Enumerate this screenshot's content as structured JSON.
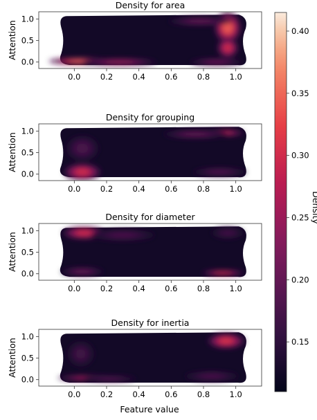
{
  "chart_data": {
    "type": "heatmap",
    "kind": "kde-density",
    "shared_xlabel": "Feature value",
    "colormap": "rocket",
    "colorbar": {
      "label": "Density",
      "min": 0.11,
      "max": 0.415,
      "ticks": [
        0.15,
        0.2,
        0.25,
        0.3,
        0.35,
        0.4
      ],
      "tick_labels": [
        "0.15",
        "0.20",
        "0.25",
        "0.30",
        "0.35",
        "0.40"
      ]
    },
    "xlim": [
      -0.22,
      1.16
    ],
    "ylim": [
      -0.15,
      1.17
    ],
    "xticks": [
      0.0,
      0.2,
      0.4,
      0.6,
      0.8,
      1.0
    ],
    "xtick_labels": [
      "0.0",
      "0.2",
      "0.4",
      "0.6",
      "0.8",
      "1.0"
    ],
    "yticks": [
      0.0,
      0.5,
      1.0
    ],
    "ytick_labels": [
      "0.0",
      "0.5",
      "1.0"
    ],
    "ylabel": "Attention",
    "panels": [
      {
        "title": "Density for area",
        "hotspots": [
          {
            "x": 0.04,
            "y": 0.02,
            "peak": 0.4,
            "sx": 0.12,
            "sy": 0.05
          },
          {
            "x": 0.28,
            "y": 0.0,
            "peak": 0.28,
            "sx": 0.14,
            "sy": 0.05
          },
          {
            "x": 0.95,
            "y": 0.8,
            "peak": 0.39,
            "sx": 0.05,
            "sy": 0.22
          },
          {
            "x": 0.95,
            "y": 0.33,
            "peak": 0.34,
            "sx": 0.04,
            "sy": 0.14
          },
          {
            "x": 0.78,
            "y": 0.95,
            "peak": 0.22,
            "sx": 0.12,
            "sy": 0.06
          },
          {
            "x": 0.88,
            "y": 0.0,
            "peak": 0.23,
            "sx": 0.1,
            "sy": 0.05
          }
        ]
      },
      {
        "title": "Density for grouping",
        "hotspots": [
          {
            "x": 0.05,
            "y": 0.05,
            "peak": 0.34,
            "sx": 0.07,
            "sy": 0.12
          },
          {
            "x": 0.92,
            "y": 0.96,
            "peak": 0.33,
            "sx": 0.08,
            "sy": 0.05
          },
          {
            "x": 0.05,
            "y": 0.6,
            "peak": 0.19,
            "sx": 0.06,
            "sy": 0.18
          },
          {
            "x": 0.75,
            "y": 0.93,
            "peak": 0.22,
            "sx": 0.12,
            "sy": 0.06
          },
          {
            "x": 0.9,
            "y": 0.05,
            "peak": 0.2,
            "sx": 0.1,
            "sy": 0.06
          }
        ]
      },
      {
        "title": "Density for diameter",
        "hotspots": [
          {
            "x": 0.06,
            "y": 0.95,
            "peak": 0.34,
            "sx": 0.08,
            "sy": 0.09
          },
          {
            "x": 0.92,
            "y": 0.02,
            "peak": 0.34,
            "sx": 0.08,
            "sy": 0.04
          },
          {
            "x": 0.05,
            "y": 0.05,
            "peak": 0.22,
            "sx": 0.08,
            "sy": 0.06
          },
          {
            "x": 0.3,
            "y": 0.9,
            "peak": 0.19,
            "sx": 0.12,
            "sy": 0.08
          },
          {
            "x": 0.95,
            "y": 0.95,
            "peak": 0.18,
            "sx": 0.06,
            "sy": 0.08
          }
        ]
      },
      {
        "title": "Density for inertia",
        "hotspots": [
          {
            "x": 0.94,
            "y": 0.9,
            "peak": 0.35,
            "sx": 0.07,
            "sy": 0.11
          },
          {
            "x": 0.08,
            "y": 0.04,
            "peak": 0.3,
            "sx": 0.11,
            "sy": 0.04
          },
          {
            "x": 0.22,
            "y": 0.02,
            "peak": 0.21,
            "sx": 0.1,
            "sy": 0.04
          },
          {
            "x": 0.04,
            "y": 0.6,
            "peak": 0.18,
            "sx": 0.05,
            "sy": 0.18
          },
          {
            "x": 0.85,
            "y": 0.08,
            "peak": 0.19,
            "sx": 0.1,
            "sy": 0.07
          }
        ]
      }
    ]
  }
}
